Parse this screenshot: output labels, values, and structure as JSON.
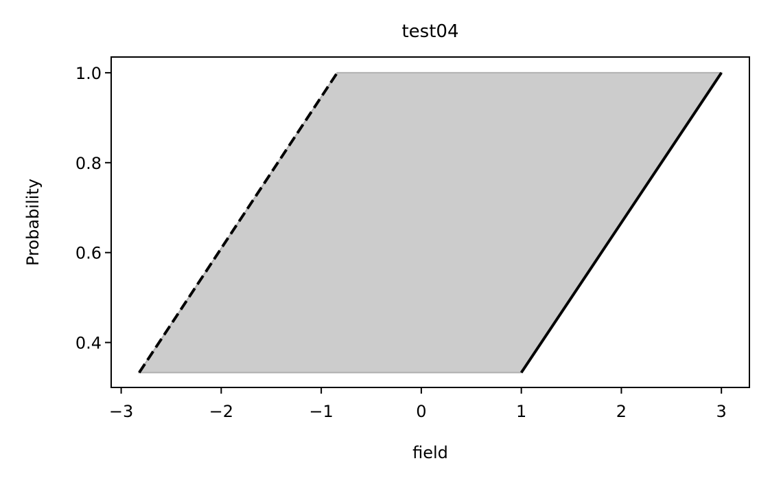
{
  "chart_data": {
    "type": "area",
    "title": "test04",
    "xlabel": "field",
    "ylabel": "Probability",
    "xlim": [
      -3.1,
      3.28
    ],
    "ylim": [
      0.3,
      1.035
    ],
    "xticks": [
      -3,
      -2,
      -1,
      0,
      1,
      2,
      3
    ],
    "xtick_labels": [
      "−3",
      "−2",
      "−1",
      "0",
      "1",
      "2",
      "3"
    ],
    "yticks": [
      0.4,
      0.6,
      0.8,
      1.0
    ],
    "ytick_labels": [
      "0.4",
      "0.6",
      "0.8",
      "1.0"
    ],
    "grid": false,
    "legend": "none",
    "series": [
      {
        "style": "dashed",
        "color": "#000000",
        "x": [
          -2.82,
          -0.84
        ],
        "y": [
          0.333,
          1.0
        ]
      },
      {
        "style": "solid",
        "color": "#000000",
        "x": [
          1.0,
          3.0
        ],
        "y": [
          0.333,
          1.0
        ]
      }
    ],
    "fill": {
      "color": "#cccccc",
      "edge_color": "#b0b0b0",
      "x": [
        -2.82,
        1.0,
        3.0,
        -0.84
      ],
      "y": [
        0.333,
        0.333,
        1.0,
        1.0
      ]
    }
  }
}
